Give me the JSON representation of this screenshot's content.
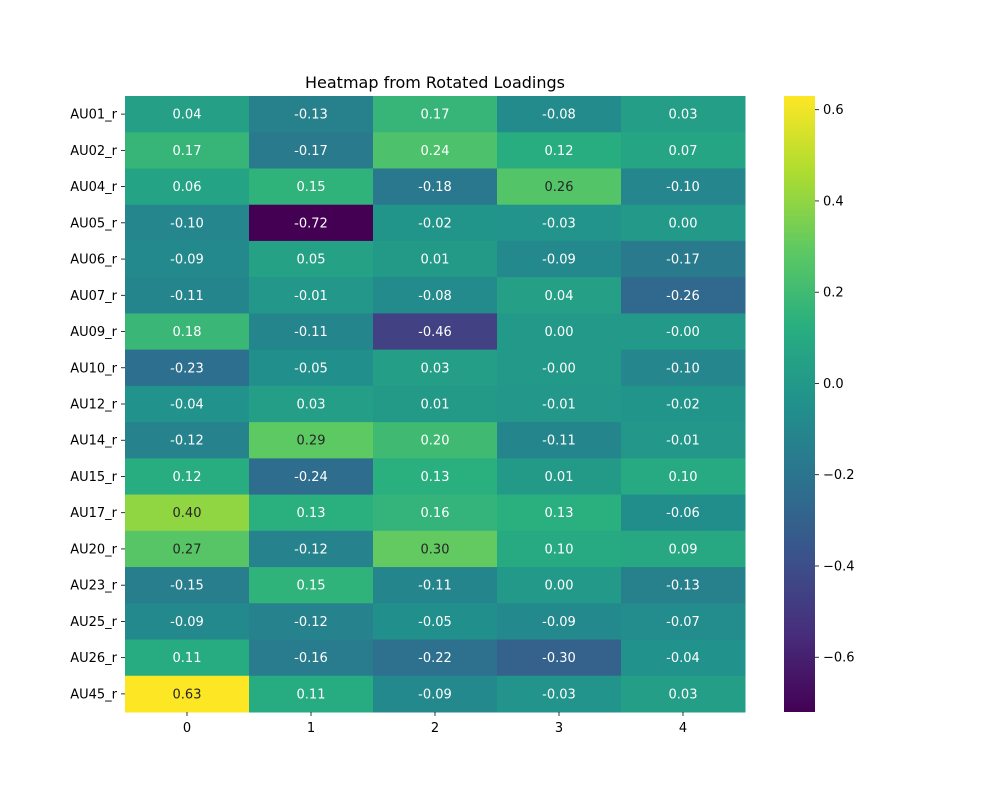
{
  "chart_data": {
    "type": "heatmap",
    "title": "Heatmap from Rotated Loadings",
    "xlabel": "",
    "ylabel": "",
    "x_categories": [
      "0",
      "1",
      "2",
      "3",
      "4"
    ],
    "y_categories": [
      "AU01_r",
      "AU02_r",
      "AU04_r",
      "AU05_r",
      "AU06_r",
      "AU07_r",
      "AU09_r",
      "AU10_r",
      "AU12_r",
      "AU14_r",
      "AU15_r",
      "AU17_r",
      "AU20_r",
      "AU23_r",
      "AU25_r",
      "AU26_r",
      "AU45_r"
    ],
    "values": [
      [
        0.04,
        -0.13,
        0.17,
        -0.08,
        0.03
      ],
      [
        0.17,
        -0.17,
        0.24,
        0.12,
        0.07
      ],
      [
        0.06,
        0.15,
        -0.18,
        0.26,
        -0.1
      ],
      [
        -0.1,
        -0.72,
        -0.02,
        -0.03,
        0.0
      ],
      [
        -0.09,
        0.05,
        0.01,
        -0.09,
        -0.17
      ],
      [
        -0.11,
        -0.01,
        -0.08,
        0.04,
        -0.26
      ],
      [
        0.18,
        -0.11,
        -0.46,
        0.0,
        -0.001
      ],
      [
        -0.23,
        -0.05,
        0.03,
        -0.001,
        -0.1
      ],
      [
        -0.04,
        0.03,
        0.01,
        -0.01,
        -0.02
      ],
      [
        -0.12,
        0.29,
        0.2,
        -0.11,
        -0.01
      ],
      [
        0.12,
        -0.24,
        0.13,
        0.01,
        0.1
      ],
      [
        0.4,
        0.13,
        0.16,
        0.13,
        -0.06
      ],
      [
        0.27,
        -0.12,
        0.3,
        0.1,
        0.09
      ],
      [
        -0.15,
        0.15,
        -0.11,
        0.0,
        -0.13
      ],
      [
        -0.09,
        -0.12,
        -0.05,
        -0.09,
        -0.07
      ],
      [
        0.11,
        -0.16,
        -0.22,
        -0.3,
        -0.04
      ],
      [
        0.63,
        0.11,
        -0.09,
        -0.03,
        0.03
      ]
    ],
    "annotations": [
      [
        "0.04",
        "-0.13",
        "0.17",
        "-0.08",
        "0.03"
      ],
      [
        "0.17",
        "-0.17",
        "0.24",
        "0.12",
        "0.07"
      ],
      [
        "0.06",
        "0.15",
        "-0.18",
        "0.26",
        "-0.10"
      ],
      [
        "-0.10",
        "-0.72",
        "-0.02",
        "-0.03",
        "0.00"
      ],
      [
        "-0.09",
        "0.05",
        "0.01",
        "-0.09",
        "-0.17"
      ],
      [
        "-0.11",
        "-0.01",
        "-0.08",
        "0.04",
        "-0.26"
      ],
      [
        "0.18",
        "-0.11",
        "-0.46",
        "0.00",
        "-0.00"
      ],
      [
        "-0.23",
        "-0.05",
        "0.03",
        "-0.00",
        "-0.10"
      ],
      [
        "-0.04",
        "0.03",
        "0.01",
        "-0.01",
        "-0.02"
      ],
      [
        "-0.12",
        "0.29",
        "0.20",
        "-0.11",
        "-0.01"
      ],
      [
        "0.12",
        "-0.24",
        "0.13",
        "0.01",
        "0.10"
      ],
      [
        "0.40",
        "0.13",
        "0.16",
        "0.13",
        "-0.06"
      ],
      [
        "0.27",
        "-0.12",
        "0.30",
        "0.10",
        "0.09"
      ],
      [
        "-0.15",
        "0.15",
        "-0.11",
        "0.00",
        "-0.13"
      ],
      [
        "-0.09",
        "-0.12",
        "-0.05",
        "-0.09",
        "-0.07"
      ],
      [
        "0.11",
        "-0.16",
        "-0.22",
        "-0.30",
        "-0.04"
      ],
      [
        "0.63",
        "0.11",
        "-0.09",
        "-0.03",
        "0.03"
      ]
    ],
    "vmin": -0.72,
    "vmax": 0.63,
    "colormap": "viridis",
    "colorbar": {
      "ticks": [
        0.6,
        0.4,
        0.2,
        0.0,
        -0.2,
        -0.4,
        -0.6
      ],
      "tick_labels": [
        "0.6",
        "0.4",
        "0.2",
        "0.0",
        "−0.2",
        "−0.4",
        "−0.6"
      ]
    }
  }
}
